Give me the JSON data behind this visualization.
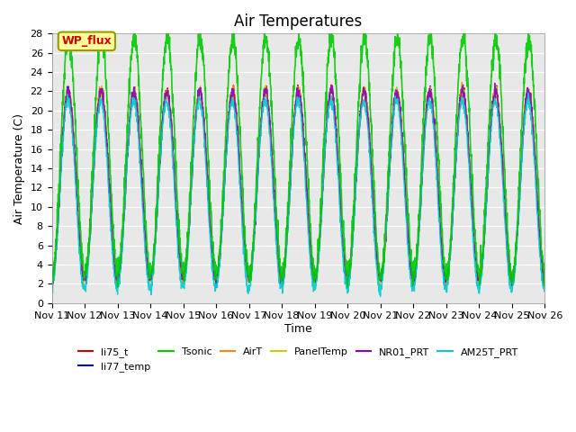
{
  "title": "Air Temperatures",
  "xlabel": "Time",
  "ylabel": "Air Temperature (C)",
  "ylim": [
    0,
    28
  ],
  "yticks": [
    0,
    2,
    4,
    6,
    8,
    10,
    12,
    14,
    16,
    18,
    20,
    22,
    24,
    26,
    28
  ],
  "xtick_positions": [
    0,
    1,
    2,
    3,
    4,
    5,
    6,
    7,
    8,
    9,
    10,
    11,
    12,
    13,
    14,
    15
  ],
  "xtick_labels": [
    "Nov 11",
    "Nov 12",
    "Nov 13",
    "Nov 14",
    "Nov 15",
    "Nov 16",
    "Nov 17",
    "Nov 18",
    "Nov 19",
    "Nov 20",
    "Nov 21",
    "Nov 22",
    "Nov 23",
    "Nov 24",
    "Nov 25",
    "Nov 26"
  ],
  "n_days": 15,
  "series_order": [
    "li75_t",
    "li77_temp",
    "AirT",
    "PanelTemp",
    "NR01_PRT",
    "AM25T_PRT",
    "Tsonic"
  ],
  "series": {
    "li75_t": {
      "color": "#cc0000",
      "lw": 1.0
    },
    "li77_temp": {
      "color": "#0000cc",
      "lw": 1.0
    },
    "Tsonic": {
      "color": "#00cc00",
      "lw": 1.2
    },
    "AirT": {
      "color": "#ff8800",
      "lw": 1.0
    },
    "PanelTemp": {
      "color": "#cccc00",
      "lw": 1.0
    },
    "NR01_PRT": {
      "color": "#8800cc",
      "lw": 1.0
    },
    "AM25T_PRT": {
      "color": "#00cccc",
      "lw": 1.0
    }
  },
  "legend_order": [
    "li75_t",
    "li77_temp",
    "Tsonic",
    "AirT",
    "PanelTemp",
    "NR01_PRT",
    "AM25T_PRT"
  ],
  "annotation_text": "WP_flux",
  "annotation_color": "#cc0000",
  "annotation_bg": "#ffff99",
  "annotation_border": "#999900",
  "background_color": "#e8e8e8",
  "title_fontsize": 12,
  "axis_fontsize": 9,
  "tick_fontsize": 8,
  "legend_fontsize": 8
}
